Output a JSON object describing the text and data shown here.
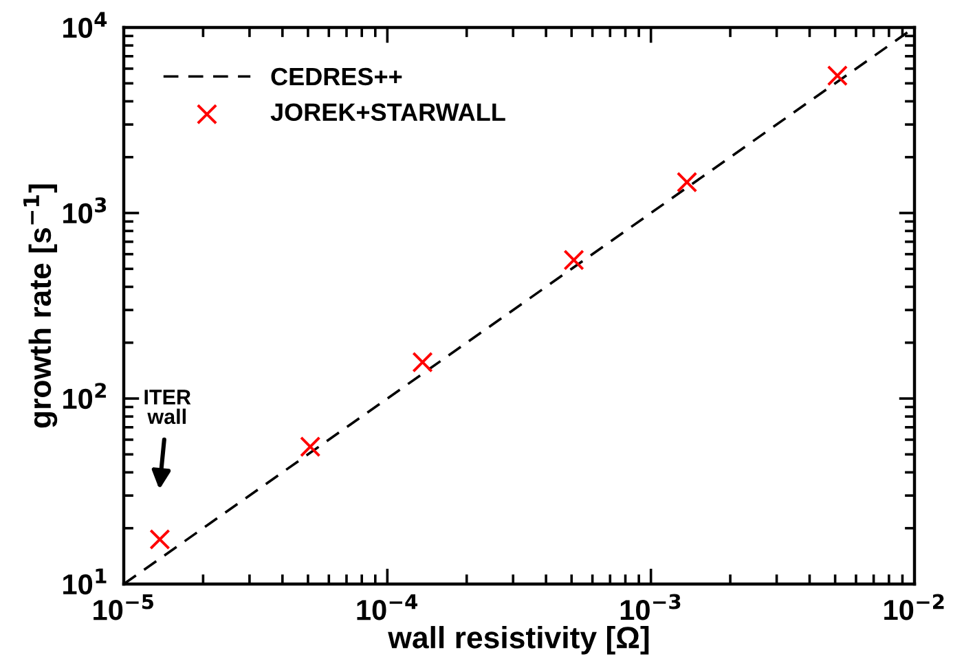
{
  "chart_data": {
    "type": "scatter",
    "xlabel": "wall resistivity [Ω]",
    "ylabel": "growth rate [s$^{−1}$]",
    "log": "xy",
    "xlim": [
      1e-05,
      0.01
    ],
    "ylim": [
      10,
      10000
    ],
    "xticks": [
      {
        "value": 1e-05,
        "label": "10$^{−5}$"
      },
      {
        "value": 0.0001,
        "label": "10$^{−4}$"
      },
      {
        "value": 0.001,
        "label": "10$^{−3}$"
      },
      {
        "value": 0.01,
        "label": "10$^{−2}$"
      }
    ],
    "yticks": [
      {
        "value": 10,
        "label": "10$^{1}$"
      },
      {
        "value": 100,
        "label": "10$^{2}$"
      },
      {
        "value": 1000,
        "label": "10$^{3}$"
      },
      {
        "value": 10000,
        "label": "10$^{4}$"
      }
    ],
    "grid": false,
    "legend": "top left",
    "series": [
      {
        "name": "CEDRES++",
        "type": "line",
        "color": "#000000",
        "line_style": "dashed",
        "marker": "none",
        "x": [
          1e-05,
          0.01
        ],
        "values": [
          10,
          10000
        ]
      },
      {
        "name": "JOREK+STARWALL",
        "color": "#ff0000",
        "marker": "cross",
        "x": [
          1.37e-05,
          5.1e-05,
          0.000136,
          0.00051,
          0.00137,
          0.0051
        ],
        "values": [
          17.4,
          55,
          157,
          558,
          1466,
          5500
        ]
      }
    ],
    "annotations": [
      "ITER\nwall"
    ]
  }
}
